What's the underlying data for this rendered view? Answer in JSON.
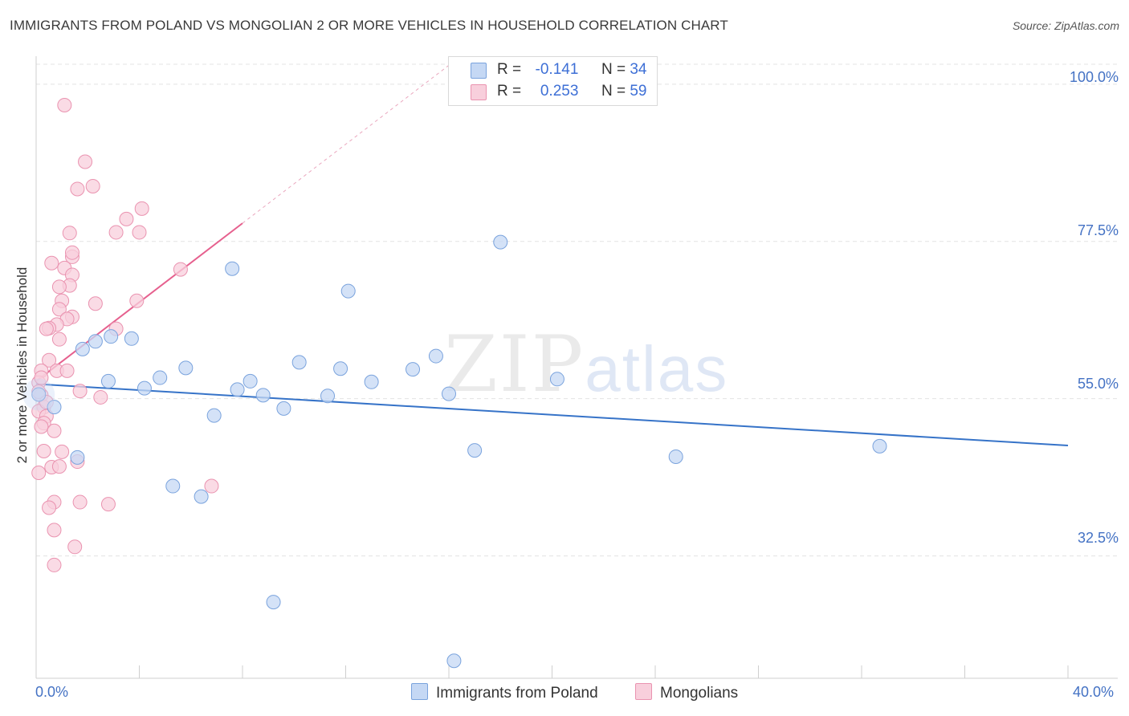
{
  "title": "IMMIGRANTS FROM POLAND VS MONGOLIAN 2 OR MORE VEHICLES IN HOUSEHOLD CORRELATION CHART",
  "source": "Source: ZipAtlas.com",
  "watermark": {
    "zip": "ZIP",
    "atlas": "atlas"
  },
  "legend": {
    "r_label": "R =",
    "n_label": "N =",
    "rows": [
      {
        "r": "-0.141",
        "n": "34"
      },
      {
        "r": "0.253",
        "n": "59"
      }
    ]
  },
  "colors": {
    "blue_fill": "#c5d8f4",
    "blue_stroke": "#7aa3dd",
    "blue_line": "#3673c8",
    "pink_fill": "#f8cfdc",
    "pink_stroke": "#ea93b0",
    "pink_line": "#e6608e",
    "grid": "#e3e3e3",
    "axis_text": "#4472c4"
  },
  "chart_data": {
    "type": "scatter",
    "title": "IMMIGRANTS FROM POLAND VS MONGOLIAN 2 OR MORE VEHICLES IN HOUSEHOLD CORRELATION CHART",
    "xlabel": "",
    "ylabel": "2 or more Vehicles in Household",
    "xlim": [
      0,
      40
    ],
    "ylim": [
      15,
      104
    ],
    "x_tick_labels": [
      "0.0%",
      "40.0%"
    ],
    "y_ticks": [
      32.5,
      55.0,
      77.5,
      100.0
    ],
    "y_tick_labels": [
      "32.5%",
      "55.0%",
      "77.5%",
      "100.0%"
    ],
    "grid": true,
    "legend_position": "top-center",
    "series": [
      {
        "name": "Immigrants from Poland",
        "color": "#7aa3dd",
        "r": -0.141,
        "n": 34,
        "trend": {
          "x": [
            0,
            40
          ],
          "y": [
            57.1,
            48.3
          ]
        },
        "points": [
          {
            "x": 0.1,
            "y": 55.6
          },
          {
            "x": 0.7,
            "y": 53.8
          },
          {
            "x": 1.6,
            "y": 46.6
          },
          {
            "x": 1.8,
            "y": 62.1
          },
          {
            "x": 2.3,
            "y": 63.2
          },
          {
            "x": 2.8,
            "y": 57.5
          },
          {
            "x": 2.9,
            "y": 63.9
          },
          {
            "x": 3.7,
            "y": 63.6
          },
          {
            "x": 4.2,
            "y": 56.5
          },
          {
            "x": 4.8,
            "y": 58.0
          },
          {
            "x": 5.3,
            "y": 42.5
          },
          {
            "x": 5.8,
            "y": 59.4
          },
          {
            "x": 6.4,
            "y": 41.0
          },
          {
            "x": 6.9,
            "y": 52.6
          },
          {
            "x": 7.6,
            "y": 73.6
          },
          {
            "x": 7.8,
            "y": 56.3
          },
          {
            "x": 8.3,
            "y": 57.5
          },
          {
            "x": 8.8,
            "y": 55.5
          },
          {
            "x": 9.2,
            "y": 25.9
          },
          {
            "x": 9.6,
            "y": 53.6
          },
          {
            "x": 10.2,
            "y": 60.2
          },
          {
            "x": 11.3,
            "y": 55.4
          },
          {
            "x": 11.8,
            "y": 59.3
          },
          {
            "x": 12.1,
            "y": 70.4
          },
          {
            "x": 13.0,
            "y": 57.4
          },
          {
            "x": 14.6,
            "y": 59.2
          },
          {
            "x": 15.5,
            "y": 61.1
          },
          {
            "x": 16.2,
            "y": 17.5
          },
          {
            "x": 16.0,
            "y": 55.7
          },
          {
            "x": 17.0,
            "y": 47.6
          },
          {
            "x": 18.0,
            "y": 77.4
          },
          {
            "x": 20.2,
            "y": 57.8
          },
          {
            "x": 24.8,
            "y": 46.7
          },
          {
            "x": 32.7,
            "y": 48.2
          }
        ]
      },
      {
        "name": "Mongolians",
        "color": "#ea93b0",
        "r": 0.253,
        "n": 59,
        "trend": {
          "x": [
            0,
            8.0
          ],
          "y": [
            57.5,
            80.1
          ]
        },
        "trend_dashed": {
          "x": [
            8.0,
            16.0
          ],
          "y": [
            80.1,
            102.7
          ]
        },
        "points": [
          {
            "x": 1.1,
            "y": 97.0
          },
          {
            "x": 1.9,
            "y": 88.9
          },
          {
            "x": 1.6,
            "y": 85.0
          },
          {
            "x": 2.2,
            "y": 85.4
          },
          {
            "x": 3.5,
            "y": 80.7
          },
          {
            "x": 4.1,
            "y": 82.2
          },
          {
            "x": 3.1,
            "y": 78.8
          },
          {
            "x": 4.0,
            "y": 78.8
          },
          {
            "x": 1.3,
            "y": 78.7
          },
          {
            "x": 1.4,
            "y": 75.3
          },
          {
            "x": 1.4,
            "y": 75.9
          },
          {
            "x": 0.6,
            "y": 74.4
          },
          {
            "x": 1.1,
            "y": 73.7
          },
          {
            "x": 1.4,
            "y": 72.7
          },
          {
            "x": 5.6,
            "y": 73.5
          },
          {
            "x": 1.3,
            "y": 71.2
          },
          {
            "x": 0.9,
            "y": 71.0
          },
          {
            "x": 1.0,
            "y": 69.0
          },
          {
            "x": 2.3,
            "y": 68.6
          },
          {
            "x": 3.9,
            "y": 69.0
          },
          {
            "x": 0.9,
            "y": 67.8
          },
          {
            "x": 1.4,
            "y": 66.7
          },
          {
            "x": 1.2,
            "y": 66.4
          },
          {
            "x": 0.8,
            "y": 65.6
          },
          {
            "x": 0.5,
            "y": 65.1
          },
          {
            "x": 0.4,
            "y": 65.0
          },
          {
            "x": 3.1,
            "y": 65.0
          },
          {
            "x": 0.9,
            "y": 63.5
          },
          {
            "x": 0.5,
            "y": 60.5
          },
          {
            "x": 0.2,
            "y": 59.0
          },
          {
            "x": 0.8,
            "y": 59.0
          },
          {
            "x": 1.2,
            "y": 59.0
          },
          {
            "x": 0.1,
            "y": 57.3
          },
          {
            "x": 1.7,
            "y": 56.1
          },
          {
            "x": 0.2,
            "y": 55.5
          },
          {
            "x": 2.5,
            "y": 55.2
          },
          {
            "x": 0.3,
            "y": 53.8
          },
          {
            "x": 0.1,
            "y": 53.2
          },
          {
            "x": 0.4,
            "y": 52.5
          },
          {
            "x": 0.3,
            "y": 51.5
          },
          {
            "x": 0.2,
            "y": 51.0
          },
          {
            "x": 0.7,
            "y": 50.4
          },
          {
            "x": 0.3,
            "y": 47.5
          },
          {
            "x": 1.0,
            "y": 47.4
          },
          {
            "x": 0.6,
            "y": 45.2
          },
          {
            "x": 0.9,
            "y": 45.3
          },
          {
            "x": 1.6,
            "y": 46.0
          },
          {
            "x": 0.1,
            "y": 44.4
          },
          {
            "x": 6.8,
            "y": 42.5
          },
          {
            "x": 0.7,
            "y": 40.2
          },
          {
            "x": 1.7,
            "y": 40.2
          },
          {
            "x": 2.8,
            "y": 39.9
          },
          {
            "x": 0.5,
            "y": 39.4
          },
          {
            "x": 0.7,
            "y": 36.2
          },
          {
            "x": 1.5,
            "y": 33.8
          },
          {
            "x": 0.7,
            "y": 31.2
          },
          {
            "x": 0.1,
            "y": 56.0
          },
          {
            "x": 0.2,
            "y": 58.0
          },
          {
            "x": 0.4,
            "y": 54.5
          }
        ]
      }
    ]
  },
  "bottom_legend": {
    "items": [
      {
        "label": "Immigrants from Poland"
      },
      {
        "label": "Mongolians"
      }
    ]
  }
}
